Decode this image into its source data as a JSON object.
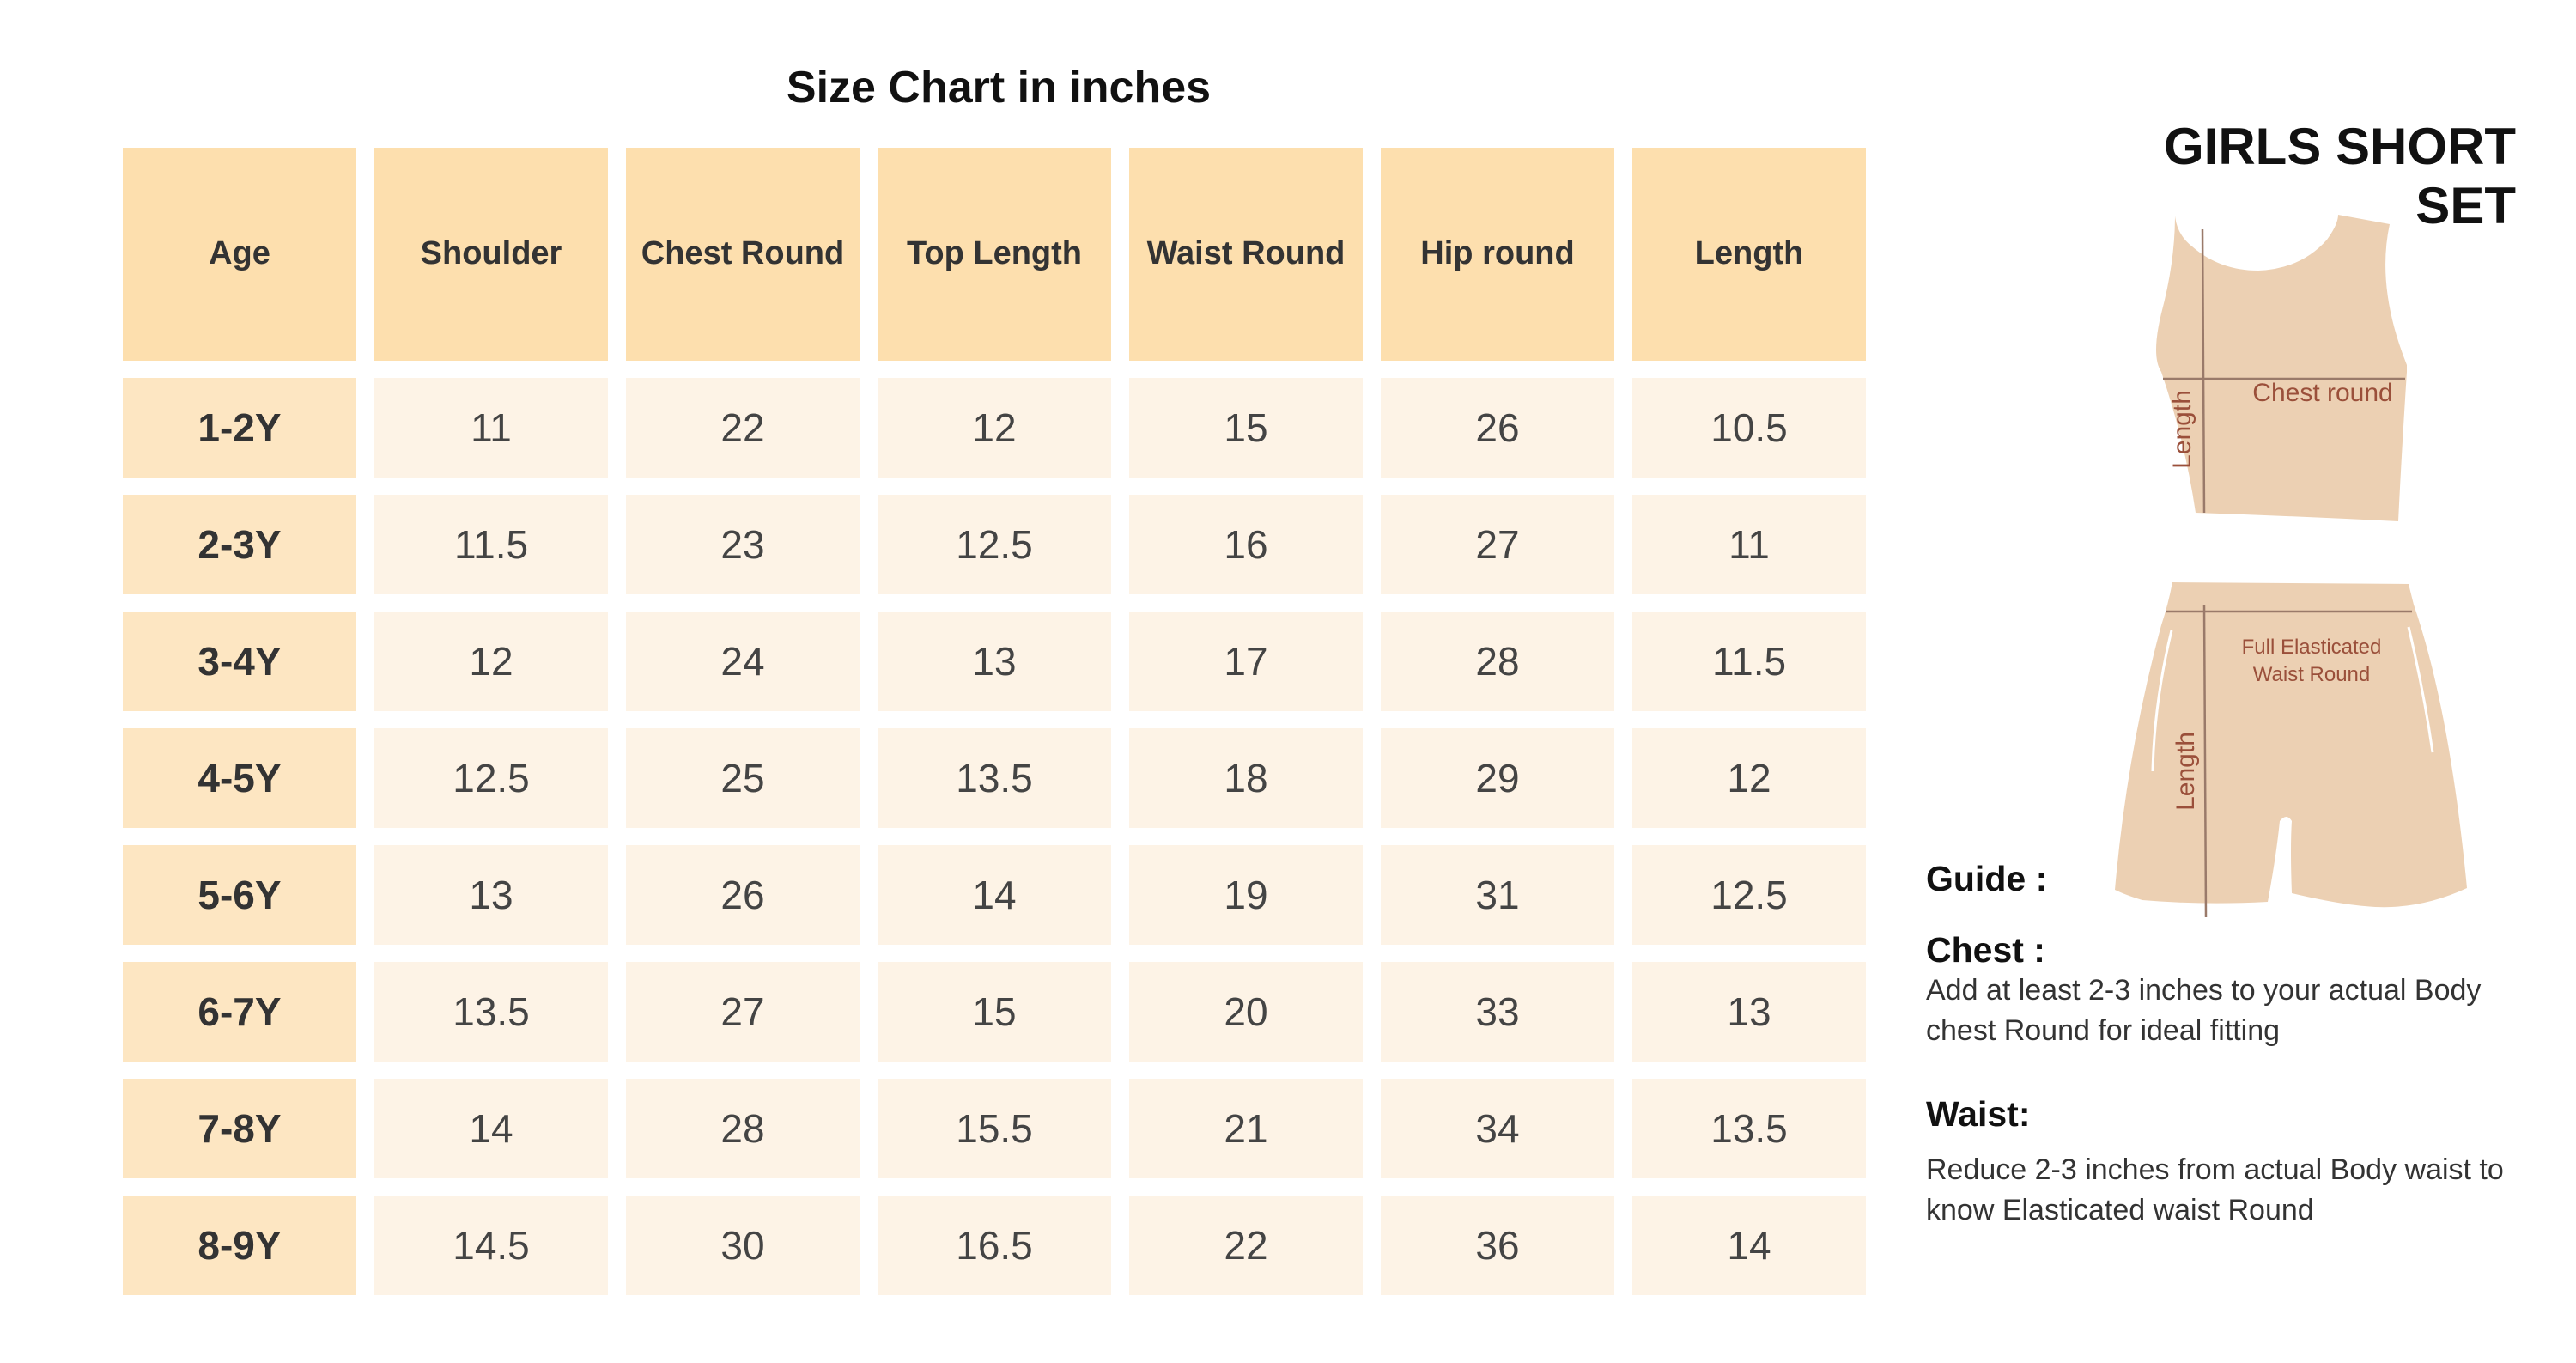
{
  "table": {
    "title": "Size Chart in inches",
    "headers": [
      "Age",
      "Shoulder",
      "Chest Round",
      "Top Length",
      "Waist Round",
      "Hip round",
      "Length"
    ],
    "rows": [
      [
        "1-2Y",
        "11",
        "22",
        "12",
        "15",
        "26",
        "10.5"
      ],
      [
        "2-3Y",
        "11.5",
        "23",
        "12.5",
        "16",
        "27",
        "11"
      ],
      [
        "3-4Y",
        "12",
        "24",
        "13",
        "17",
        "28",
        "11.5"
      ],
      [
        "4-5Y",
        "12.5",
        "25",
        "13.5",
        "18",
        "29",
        "12"
      ],
      [
        "5-6Y",
        "13",
        "26",
        "14",
        "19",
        "31",
        "12.5"
      ],
      [
        "6-7Y",
        "13.5",
        "27",
        "15",
        "20",
        "33",
        "13"
      ],
      [
        "7-8Y",
        "14",
        "28",
        "15.5",
        "21",
        "34",
        "13.5"
      ],
      [
        "8-9Y",
        "14.5",
        "30",
        "16.5",
        "22",
        "36",
        "14"
      ]
    ]
  },
  "product": {
    "title": "GIRLS SHORT SET",
    "top_diagram": {
      "length_label": "Length",
      "chest_label": "Chest round"
    },
    "shorts_diagram": {
      "length_label": "Length",
      "waist_label_line1": "Full Elasticated",
      "waist_label_line2": "Waist Round"
    }
  },
  "guide": {
    "heading": "Guide :",
    "chest_heading": "Chest :",
    "chest_text": "Add at least 2-3 inches to your actual Body chest Round for ideal fitting",
    "waist_heading": "Waist:",
    "waist_text": "Reduce  2-3 inches from actual Body waist  to know Elasticated waist Round"
  },
  "colors": {
    "header_bg": "#fddfae",
    "age_bg": "#fde6c2",
    "cell_bg": "#fdf3e6",
    "garment_fill": "#ecd0b3",
    "measure_line": "#9a7a6a",
    "label_color": "#9a4f3a"
  }
}
